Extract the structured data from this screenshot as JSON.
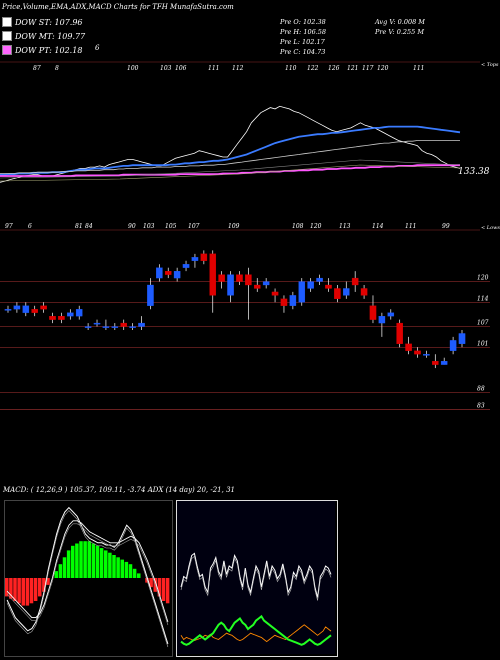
{
  "header": {
    "title": "Price,Volume,EMA,ADX,MACD Charts for TFH MunafaSutra.com"
  },
  "legend": [
    {
      "label": "DOW ST: 107.96",
      "color": "#ffffff"
    },
    {
      "label": "DOW MT: 109.77",
      "color": "#ffffff"
    },
    {
      "label": "DOW PT: 102.18",
      "color": "#ff66ff"
    }
  ],
  "ohlc": {
    "open": "Pre  O: 102.38",
    "high": "Pre  H: 106.58",
    "low": "Pre  L: 102.17",
    "close": "Pre  C: 104.73",
    "avg_volume": "Avg V: 0.008  M",
    "pre_volume": "Pre  V: 0.255  M"
  },
  "side_labels": {
    "tops": "< Tops",
    "lows": "< Lows",
    "ema_last": "133.38"
  },
  "stray_label": "6",
  "ema_top_labels": [
    "87",
    "8",
    "100",
    "103",
    "106",
    "111",
    "112",
    "110",
    "122",
    "126",
    "121",
    "117",
    "120",
    "111"
  ],
  "ema_bottom_labels": [
    "97",
    "6",
    "81",
    "84",
    "90",
    "103",
    "105",
    "107",
    "109",
    "108",
    "120",
    "113",
    "114",
    "111",
    "99"
  ],
  "macd_header": "MACD:                      ( 12,26,9 ) 105.37,  109.11, -3.74 ADX                    (14  day) 20,  -21,  31",
  "colors": {
    "up": "#1e5cff",
    "down": "#e00000",
    "grid": "#8b2a2a",
    "macd_hist_up": "#00ff00",
    "macd_hist_down": "#ff2222"
  },
  "chart_data": [
    {
      "type": "line",
      "name": "ema-chart",
      "series": [
        {
          "values": [
            145,
            146,
            147,
            148,
            149,
            150,
            150.5,
            151,
            151,
            150,
            150,
            150,
            151,
            152,
            153,
            154,
            155,
            156,
            156,
            157,
            157,
            158,
            157,
            159,
            160,
            161,
            162,
            163,
            163,
            162,
            161,
            160,
            159,
            158,
            158,
            160,
            162,
            164,
            165,
            166,
            167,
            168,
            170,
            169,
            168,
            167,
            166,
            165,
            165,
            170,
            175,
            180,
            185,
            192,
            196,
            200,
            202,
            204,
            203,
            205,
            204,
            203,
            201,
            200,
            198,
            196,
            194,
            192,
            190,
            188,
            186,
            185,
            186,
            187,
            188,
            190,
            192,
            190,
            189,
            188,
            186,
            184,
            182,
            180,
            178,
            177,
            176,
            175,
            174,
            170,
            168,
            167,
            165,
            162,
            160,
            158,
            157,
            156
          ]
        },
        {
          "values": [
            151,
            151,
            151.5,
            151.5,
            152,
            152,
            152,
            152.5,
            152.5,
            152.5,
            152.5,
            153,
            153,
            153,
            153.5,
            154,
            154.5,
            155,
            155,
            155.5,
            156,
            156,
            156,
            156.5,
            157,
            157.5,
            158,
            158,
            158.5,
            158.5,
            158.5,
            158.5,
            158.5,
            158.5,
            158.5,
            158.5,
            159,
            159,
            159.5,
            160,
            160,
            160.5,
            161,
            161,
            161.5,
            162,
            162,
            162.5,
            163,
            164,
            165,
            166,
            167,
            168.5,
            170,
            171.5,
            173,
            174.5,
            176,
            177,
            178,
            179,
            180,
            181,
            181.5,
            182,
            182.5,
            183,
            183,
            183.5,
            184,
            184,
            184.5,
            185,
            185.5,
            186,
            186.5,
            187,
            187.5,
            188,
            188,
            188.5,
            189,
            189,
            189,
            189,
            189,
            189,
            189,
            188.5,
            188,
            187.5,
            187,
            186.5,
            186,
            185.5,
            185,
            184.5
          ]
        },
        {
          "values": [
            152,
            152,
            152,
            152,
            152.5,
            152.5,
            152.5,
            152.5,
            153,
            153,
            153,
            153,
            153,
            153.5,
            153.5,
            153.5,
            154,
            154,
            154,
            154.5,
            154.5,
            154.5,
            155,
            155,
            155,
            155.5,
            155.5,
            156,
            156,
            156,
            156.5,
            156.5,
            156.5,
            157,
            157,
            157,
            157,
            157.5,
            157.5,
            157.5,
            158,
            158,
            158,
            158.5,
            158.5,
            158.5,
            159,
            159,
            159.5,
            160,
            160.5,
            161,
            161.5,
            162,
            162.5,
            163,
            163.5,
            164,
            164.5,
            165,
            165.5,
            166,
            166.5,
            167,
            167.5,
            168,
            168.5,
            169,
            169.5,
            170,
            170.5,
            171,
            171.5,
            172,
            172.5,
            173,
            173.5,
            174,
            174.5,
            175,
            175.5,
            176,
            176,
            176.5,
            177,
            177,
            177.5,
            177.5,
            178,
            178,
            178,
            178,
            178,
            178,
            178,
            178,
            178,
            178
          ]
        },
        {
          "values": [
            150,
            150,
            150,
            150,
            150,
            150,
            150,
            150,
            150,
            150,
            150,
            150,
            150,
            150,
            150,
            150,
            150.5,
            150.5,
            150.5,
            150.5,
            150.5,
            150.5,
            150.5,
            150.5,
            150.5,
            150.5,
            151,
            151,
            151,
            151,
            151,
            151,
            151,
            151,
            151,
            151,
            151,
            151,
            151.5,
            151.5,
            151.5,
            151.5,
            151.5,
            151.5,
            151.5,
            151.5,
            151.5,
            152,
            152,
            152,
            152,
            152.5,
            152.5,
            152.5,
            153,
            153,
            153,
            153.5,
            153.5,
            153.5,
            154,
            154,
            154,
            154.5,
            154.5,
            154.5,
            155,
            155,
            155,
            155.5,
            155.5,
            155.5,
            156,
            156,
            156,
            156.5,
            156.5,
            156.5,
            157,
            157,
            157,
            157.5,
            157.5,
            157.5,
            158,
            158,
            158,
            158,
            158.5,
            158.5,
            158.5,
            158.5,
            158.5,
            158.5,
            158.5,
            158.5,
            158.5,
            158.5
          ]
        }
      ]
    },
    {
      "type": "bar",
      "name": "candlestick-chart",
      "levels": [
        120,
        114,
        107,
        101,
        88,
        83
      ],
      "candles": [
        {
          "o": 112,
          "c": 112,
          "h": 113,
          "l": 111
        },
        {
          "o": 112,
          "c": 113,
          "h": 114,
          "l": 111
        },
        {
          "o": 111,
          "c": 113,
          "h": 114,
          "l": 110
        },
        {
          "o": 112,
          "c": 111,
          "h": 113,
          "l": 110
        },
        {
          "o": 113,
          "c": 112,
          "h": 114,
          "l": 111
        },
        {
          "o": 110,
          "c": 109,
          "h": 111,
          "l": 108
        },
        {
          "o": 110,
          "c": 109,
          "h": 111,
          "l": 108
        },
        {
          "o": 110,
          "c": 111,
          "h": 112,
          "l": 109
        },
        {
          "o": 110,
          "c": 112,
          "h": 113,
          "l": 109
        },
        {
          "o": 107,
          "c": 107,
          "h": 108,
          "l": 106
        },
        {
          "o": 108,
          "c": 108,
          "h": 109,
          "l": 107
        },
        {
          "o": 107,
          "c": 107,
          "h": 109,
          "l": 106
        },
        {
          "o": 107,
          "c": 107,
          "h": 108,
          "l": 106
        },
        {
          "o": 108,
          "c": 107,
          "h": 109,
          "l": 106
        },
        {
          "o": 107,
          "c": 107,
          "h": 108,
          "l": 106
        },
        {
          "o": 107,
          "c": 108,
          "h": 110,
          "l": 106
        },
        {
          "o": 113,
          "c": 119,
          "h": 121,
          "l": 112
        },
        {
          "o": 121,
          "c": 124,
          "h": 125,
          "l": 120
        },
        {
          "o": 123,
          "c": 122,
          "h": 124,
          "l": 121
        },
        {
          "o": 121,
          "c": 123,
          "h": 124,
          "l": 120
        },
        {
          "o": 124,
          "c": 125,
          "h": 126,
          "l": 123
        },
        {
          "o": 126,
          "c": 127,
          "h": 128,
          "l": 124
        },
        {
          "o": 128,
          "c": 126,
          "h": 129,
          "l": 125
        },
        {
          "o": 128,
          "c": 116,
          "h": 129,
          "l": 111
        },
        {
          "o": 122,
          "c": 120,
          "h": 123,
          "l": 118
        },
        {
          "o": 116,
          "c": 122,
          "h": 123,
          "l": 114
        },
        {
          "o": 122,
          "c": 120,
          "h": 123,
          "l": 119
        },
        {
          "o": 122,
          "c": 119,
          "h": 124,
          "l": 109
        },
        {
          "o": 119,
          "c": 118,
          "h": 121,
          "l": 117
        },
        {
          "o": 119,
          "c": 120,
          "h": 121,
          "l": 118
        },
        {
          "o": 117,
          "c": 116,
          "h": 118,
          "l": 114
        },
        {
          "o": 115,
          "c": 113,
          "h": 116,
          "l": 111
        },
        {
          "o": 113,
          "c": 116,
          "h": 117,
          "l": 112
        },
        {
          "o": 114,
          "c": 120,
          "h": 121,
          "l": 113
        },
        {
          "o": 118,
          "c": 120,
          "h": 121,
          "l": 117
        },
        {
          "o": 120,
          "c": 121,
          "h": 122,
          "l": 119
        },
        {
          "o": 119,
          "c": 118,
          "h": 121,
          "l": 117
        },
        {
          "o": 118,
          "c": 115,
          "h": 119,
          "l": 114
        },
        {
          "o": 116,
          "c": 118,
          "h": 120,
          "l": 115
        },
        {
          "o": 121,
          "c": 119,
          "h": 123,
          "l": 117
        },
        {
          "o": 118,
          "c": 116,
          "h": 119,
          "l": 115
        },
        {
          "o": 113,
          "c": 109,
          "h": 116,
          "l": 108
        },
        {
          "o": 108,
          "c": 110,
          "h": 111,
          "l": 104
        },
        {
          "o": 110,
          "c": 111,
          "h": 112,
          "l": 109
        },
        {
          "o": 108,
          "c": 102,
          "h": 109,
          "l": 101
        },
        {
          "o": 102,
          "c": 100,
          "h": 104,
          "l": 99
        },
        {
          "o": 100,
          "c": 99,
          "h": 101,
          "l": 98
        },
        {
          "o": 99,
          "c": 99,
          "h": 100,
          "l": 98
        },
        {
          "o": 97,
          "c": 96,
          "h": 99,
          "l": 95
        },
        {
          "o": 96,
          "c": 97,
          "h": 98,
          "l": 96
        },
        {
          "o": 100,
          "c": 103,
          "h": 104,
          "l": 99
        },
        {
          "o": 102,
          "c": 105,
          "h": 106,
          "l": 101
        }
      ]
    },
    {
      "type": "bar",
      "name": "macd-chart",
      "histogram": [
        -8,
        -9,
        -10,
        -11,
        -12,
        -12,
        -11,
        -10,
        -8,
        -6,
        -3,
        0,
        3,
        6,
        9,
        12,
        14,
        15,
        16,
        16,
        16,
        15,
        14,
        13,
        12,
        11,
        10,
        9,
        8,
        7,
        6,
        4,
        2,
        0,
        -2,
        -4,
        -6,
        -8,
        -10,
        -11
      ],
      "macd_line": [
        -10,
        -14,
        -18,
        -20,
        -22,
        -24,
        -23,
        -20,
        -14,
        -6,
        4,
        12,
        20,
        26,
        30,
        32,
        30,
        28,
        24,
        20,
        18,
        17,
        16,
        16,
        15,
        15,
        14,
        16,
        20,
        24,
        22,
        18,
        12,
        6,
        0,
        -6,
        -12,
        -18,
        -24,
        -30
      ],
      "signal_line": [
        -6,
        -8,
        -10,
        -12,
        -14,
        -16,
        -18,
        -18,
        -16,
        -12,
        -6,
        0,
        8,
        14,
        20,
        24,
        26,
        26,
        25,
        23,
        21,
        20,
        19,
        18,
        17,
        16,
        16,
        16,
        17,
        18,
        19,
        18,
        16,
        12,
        8,
        3,
        -2,
        -8,
        -14,
        -20
      ]
    },
    {
      "type": "line",
      "name": "adx-chart",
      "series": [
        {
          "values": [
            60,
            70,
            68,
            80,
            90,
            92,
            80,
            70,
            72,
            60,
            55,
            78,
            82,
            88,
            75,
            70,
            85,
            72,
            80,
            78,
            90,
            85,
            70,
            60,
            78,
            62,
            55,
            68,
            80,
            75,
            60,
            72,
            85,
            70,
            80,
            76,
            68,
            72,
            82,
            70,
            55,
            60,
            74,
            70,
            80,
            76,
            66,
            72,
            80,
            76,
            60,
            50,
            70,
            74,
            80,
            78,
            72
          ]
        },
        {
          "values": [
            14,
            10,
            12,
            11,
            10,
            9,
            10,
            11,
            12,
            14,
            13,
            15,
            12,
            11,
            10,
            12,
            14,
            16,
            15,
            14,
            12,
            10,
            9,
            10,
            12,
            14,
            16,
            15,
            14,
            13,
            12,
            10,
            8,
            10,
            12,
            14,
            13,
            12,
            11,
            10,
            12,
            14,
            16,
            18,
            20,
            22,
            24,
            22,
            20,
            18,
            16,
            14,
            16,
            18,
            22,
            20,
            18
          ]
        },
        {
          "values": [
            8,
            6,
            5,
            6,
            8,
            10,
            12,
            14,
            12,
            10,
            12,
            14,
            16,
            20,
            24,
            26,
            24,
            20,
            18,
            22,
            26,
            28,
            30,
            26,
            24,
            20,
            22,
            24,
            28,
            30,
            32,
            28,
            26,
            24,
            22,
            20,
            18,
            16,
            14,
            12,
            10,
            9,
            8,
            7,
            6,
            5,
            6,
            8,
            10,
            8,
            6,
            5,
            6,
            8,
            10,
            12,
            14
          ]
        }
      ]
    }
  ]
}
